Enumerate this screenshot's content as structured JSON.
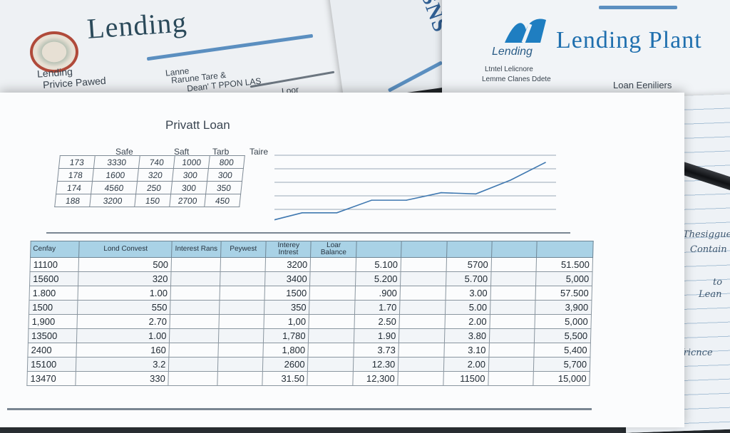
{
  "background_docs": {
    "left": {
      "title": "Lending",
      "sub1": "Lending",
      "sub2": "Privice Pawed",
      "line1": "Lanne",
      "line2": "Rarune Tare &",
      "line3": "Dean' T PPON LAS",
      "line4": "Loor"
    },
    "middle": {
      "text": "SNS"
    },
    "right": {
      "brand": "Lending Plant",
      "tagline": "Lending",
      "small1": "Ltntel Lelicnore",
      "small2": "Lemme Clanes Ddete",
      "small3": "Loan Eeniliers"
    }
  },
  "sheet": {
    "title": "Privatt Loan",
    "summary_headers": [
      "Safe",
      "Saft",
      "Tarb",
      "Taire"
    ],
    "summary_rows": [
      [
        "173",
        "3330",
        "740",
        "1000",
        "800"
      ],
      [
        "178",
        "1600",
        "320",
        "300",
        "300"
      ],
      [
        "174",
        "4560",
        "250",
        "300",
        "350"
      ],
      [
        "188",
        "3200",
        "150",
        "2700",
        "450"
      ]
    ]
  },
  "chart_data": {
    "type": "line",
    "x": [
      1,
      2,
      3,
      4,
      5,
      6,
      7,
      8,
      9
    ],
    "series": [
      {
        "values": [
          5,
          12,
          12,
          22,
          22,
          28,
          27,
          38,
          52
        ]
      }
    ],
    "ylim": [
      0,
      60
    ]
  },
  "ledger": {
    "headers": [
      "Cenfay",
      "Lond Convest",
      "Interest Rans",
      "Peywest",
      "Interey Intrest",
      "Loar Balance",
      "",
      "",
      "",
      "",
      ""
    ],
    "rows": [
      [
        "11100",
        "500",
        "",
        "",
        "3200",
        "",
        "5.100",
        "",
        "5700",
        "",
        "51.500"
      ],
      [
        "15600",
        "320",
        "",
        "",
        "3400",
        "",
        "5.200",
        "",
        "5.700",
        "",
        "5,000"
      ],
      [
        "1.800",
        "1.00",
        "",
        "",
        "1500",
        "",
        ".900",
        "",
        "3.00",
        "",
        "57.500"
      ],
      [
        "1500",
        "550",
        "",
        "",
        "350",
        "",
        "1.70",
        "",
        "5.00",
        "",
        "3,900"
      ],
      [
        "1,900",
        "2.70",
        "",
        "",
        "1,00",
        "",
        "2.50",
        "",
        "2.00",
        "",
        "5,000"
      ],
      [
        "13500",
        "1.00",
        "",
        "",
        "1,780",
        "",
        "1.90",
        "",
        "3.80",
        "",
        "5,500"
      ],
      [
        "2400",
        "160",
        "",
        "",
        "1,800",
        "",
        "3.73",
        "",
        "3.10",
        "",
        "5,400"
      ],
      [
        "15100",
        "3.2",
        "",
        "",
        "2600",
        "",
        "12.30",
        "",
        "2.00",
        "",
        "5,700"
      ],
      [
        "13470",
        "330",
        "",
        "",
        "31.50",
        "",
        "12,300",
        "",
        "11500",
        "",
        "15,000"
      ]
    ]
  },
  "notebook": {
    "line1": "Thesiggue",
    "line2": "Contain",
    "line3": "to",
    "line4": "Lean",
    "line5": "ofricnce"
  }
}
